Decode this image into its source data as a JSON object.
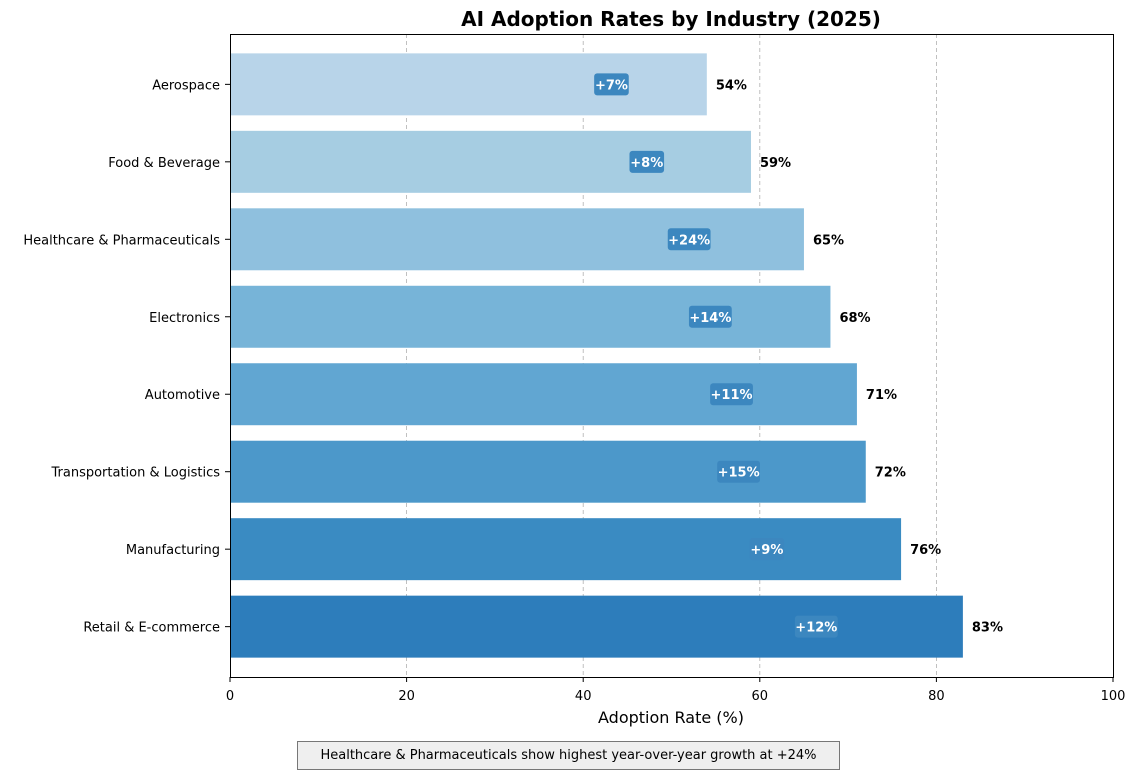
{
  "chart_data": {
    "type": "bar",
    "orientation": "horizontal",
    "title": "AI Adoption Rates by Industry (2025)",
    "xlabel": "Adoption Rate (%)",
    "ylabel": "",
    "xlim": [
      0,
      100
    ],
    "xticks": [
      0,
      20,
      40,
      60,
      80,
      100
    ],
    "grid": "x-axis dashed",
    "categories": [
      "Aerospace",
      "Food & Beverage",
      "Healthcare & Pharmaceuticals",
      "Electronics",
      "Automotive",
      "Transportation & Logistics",
      "Manufacturing",
      "Retail & E-commerce"
    ],
    "values": [
      54,
      59,
      65,
      68,
      71,
      72,
      76,
      83
    ],
    "value_labels": [
      "54%",
      "59%",
      "65%",
      "68%",
      "71%",
      "72%",
      "76%",
      "83%"
    ],
    "growth_labels": [
      "+7%",
      "+8%",
      "+24%",
      "+14%",
      "+11%",
      "+15%",
      "+9%",
      "+12%"
    ],
    "bar_colors": [
      "#b8d4e9",
      "#a6cde2",
      "#8fc0de",
      "#77b4d8",
      "#61a6d2",
      "#4c98ca",
      "#3a8bc2",
      "#2d7dbb"
    ],
    "badge_color": "#3c87bf"
  },
  "annotation": "Healthcare & Pharmaceuticals show highest year-over-year growth at +24%"
}
